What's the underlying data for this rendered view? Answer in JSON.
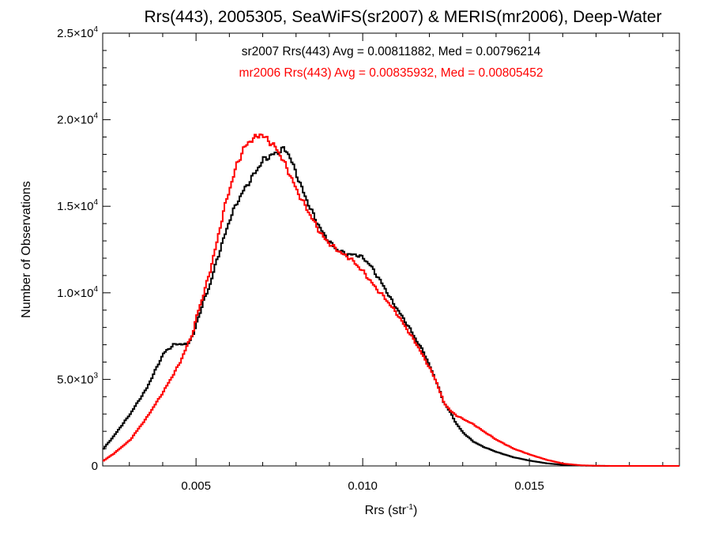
{
  "chart_data": {
    "type": "line",
    "style": "histogram-step",
    "title": "Rrs(443), 2005305, SeaWiFS(sr2007) & MERIS(mr2006), Deep-Water",
    "xlabel_base": "Rrs (str",
    "xlabel_sup": "-1",
    "xlabel_tail": ")",
    "ylabel": "Number of Observations",
    "xlim": [
      0.0022,
      0.0195
    ],
    "ylim": [
      0,
      25000
    ],
    "grid": false,
    "x_ticks": [
      {
        "value": 0.005,
        "label": "0.005"
      },
      {
        "value": 0.01,
        "label": "0.010"
      },
      {
        "value": 0.015,
        "label": "0.015"
      }
    ],
    "y_ticks": [
      {
        "value": 0,
        "label": "0",
        "mant": "",
        "exp": ""
      },
      {
        "value": 5000,
        "label": "",
        "mant": "5.0×10",
        "exp": "3"
      },
      {
        "value": 10000,
        "label": "",
        "mant": "1.0×10",
        "exp": "4"
      },
      {
        "value": 15000,
        "label": "",
        "mant": "1.5×10",
        "exp": "4"
      },
      {
        "value": 20000,
        "label": "",
        "mant": "2.0×10",
        "exp": "4"
      },
      {
        "value": 25000,
        "label": "",
        "mant": "2.5×10",
        "exp": "4"
      }
    ],
    "annotations": [
      {
        "text": "sr2007 Rrs(443) Avg = 0.00811882, Med = 0.00796214",
        "color": "#000000"
      },
      {
        "text": "mr2006 Rrs(443) Avg = 0.00835932, Med = 0.00805452",
        "color": "#ff0000"
      }
    ],
    "series": [
      {
        "color": "#000000",
        "x": [
          0.0022,
          0.0025,
          0.003,
          0.0035,
          0.004,
          0.0043,
          0.0045,
          0.0047,
          0.0049,
          0.005,
          0.0052,
          0.0054,
          0.0056,
          0.0058,
          0.006,
          0.0062,
          0.0064,
          0.0066,
          0.0068,
          0.007,
          0.0072,
          0.0074,
          0.0076,
          0.0077,
          0.0078,
          0.008,
          0.0082,
          0.0084,
          0.0086,
          0.0088,
          0.009,
          0.0092,
          0.0094,
          0.0096,
          0.0098,
          0.01,
          0.0102,
          0.0104,
          0.0106,
          0.0108,
          0.011,
          0.0112,
          0.0114,
          0.0116,
          0.0118,
          0.012,
          0.0122,
          0.0124,
          0.0126,
          0.0128,
          0.013,
          0.0133,
          0.0136,
          0.014,
          0.0145,
          0.015,
          0.0155,
          0.016,
          0.0165,
          0.017,
          0.0175,
          0.018,
          0.0185,
          0.0195
        ],
        "y": [
          1000,
          1700,
          3000,
          4500,
          6500,
          7000,
          7050,
          7000,
          7600,
          8300,
          9500,
          10500,
          11900,
          13100,
          14300,
          15200,
          15900,
          16500,
          17100,
          17700,
          17900,
          18100,
          18300,
          18200,
          17800,
          16800,
          15800,
          14900,
          14100,
          13400,
          12900,
          12500,
          12300,
          12200,
          12200,
          12000,
          11600,
          11000,
          10400,
          9700,
          9100,
          8500,
          7900,
          7200,
          6600,
          5700,
          4800,
          3700,
          3100,
          2400,
          1900,
          1400,
          1100,
          800,
          500,
          300,
          150,
          60,
          20,
          5,
          0,
          0,
          0,
          0
        ]
      },
      {
        "color": "#ff0000",
        "x": [
          0.0022,
          0.0025,
          0.003,
          0.0035,
          0.004,
          0.0043,
          0.0045,
          0.0047,
          0.0049,
          0.005,
          0.0052,
          0.0054,
          0.0056,
          0.0058,
          0.006,
          0.0062,
          0.0064,
          0.0066,
          0.0068,
          0.0069,
          0.007,
          0.0071,
          0.0072,
          0.0073,
          0.0074,
          0.0076,
          0.0078,
          0.008,
          0.0082,
          0.0084,
          0.0086,
          0.0088,
          0.009,
          0.0092,
          0.0094,
          0.0096,
          0.0098,
          0.01,
          0.0102,
          0.0104,
          0.0106,
          0.0108,
          0.011,
          0.0112,
          0.0114,
          0.0116,
          0.0118,
          0.012,
          0.0122,
          0.0124,
          0.0126,
          0.0128,
          0.013,
          0.0133,
          0.0136,
          0.014,
          0.0145,
          0.015,
          0.0155,
          0.016,
          0.0165,
          0.017,
          0.0175,
          0.018,
          0.0185,
          0.0195
        ],
        "y": [
          300,
          700,
          1500,
          2800,
          4300,
          5300,
          6000,
          6900,
          7800,
          8700,
          9900,
          11300,
          12900,
          14700,
          16100,
          17400,
          18300,
          18800,
          19000,
          19200,
          19000,
          18900,
          18700,
          18500,
          18300,
          17600,
          16800,
          15900,
          15200,
          14500,
          13800,
          13200,
          12800,
          12500,
          12200,
          12000,
          11600,
          11200,
          10700,
          10200,
          9800,
          9300,
          8800,
          8200,
          7600,
          7000,
          6300,
          5600,
          4800,
          3700,
          3200,
          2900,
          2700,
          2400,
          2000,
          1500,
          1000,
          650,
          350,
          130,
          40,
          10,
          0,
          0,
          0,
          0
        ]
      }
    ]
  }
}
